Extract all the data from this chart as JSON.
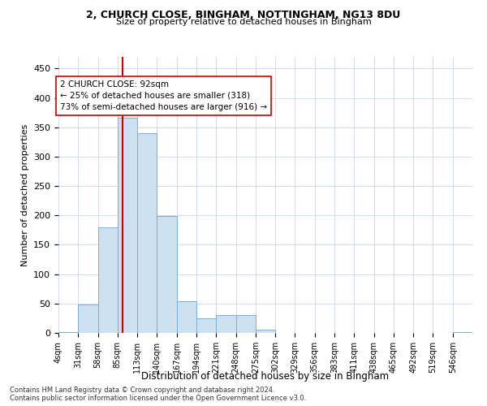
{
  "title1": "2, CHURCH CLOSE, BINGHAM, NOTTINGHAM, NG13 8DU",
  "title2": "Size of property relative to detached houses in Bingham",
  "xlabel": "Distribution of detached houses by size in Bingham",
  "ylabel": "Number of detached properties",
  "footer1": "Contains HM Land Registry data © Crown copyright and database right 2024.",
  "footer2": "Contains public sector information licensed under the Open Government Licence v3.0.",
  "annotation_line1": "2 CHURCH CLOSE: 92sqm",
  "annotation_line2": "← 25% of detached houses are smaller (318)",
  "annotation_line3": "73% of semi-detached houses are larger (916) →",
  "bar_color": "#cce0f0",
  "bar_edge_color": "#7aaed0",
  "vline_color": "#cc0000",
  "vline_x": 92,
  "bin_edges": [
    4,
    31,
    58,
    85,
    112,
    139,
    166,
    193,
    220,
    247,
    274,
    301,
    328,
    355,
    382,
    409,
    436,
    463,
    490,
    517,
    544,
    571
  ],
  "bin_labels": [
    "4sqm",
    "31sqm",
    "58sqm",
    "85sqm",
    "113sqm",
    "140sqm",
    "167sqm",
    "194sqm",
    "221sqm",
    "248sqm",
    "275sqm",
    "302sqm",
    "329sqm",
    "356sqm",
    "383sqm",
    "411sqm",
    "438sqm",
    "465sqm",
    "492sqm",
    "519sqm",
    "546sqm"
  ],
  "bar_heights": [
    2,
    49,
    180,
    367,
    340,
    199,
    54,
    25,
    31,
    31,
    6,
    0,
    0,
    0,
    0,
    0,
    0,
    0,
    0,
    0,
    2
  ],
  "ylim": [
    0,
    470
  ],
  "yticks": [
    0,
    50,
    100,
    150,
    200,
    250,
    300,
    350,
    400,
    450
  ],
  "bg_color": "#ffffff",
  "grid_color": "#d0dce8"
}
